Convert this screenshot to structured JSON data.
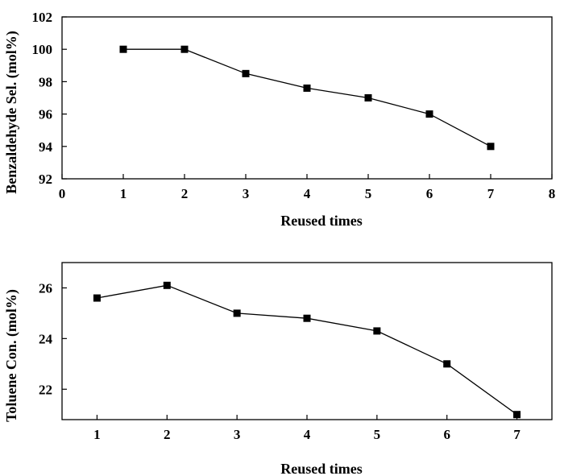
{
  "chart_data": [
    {
      "type": "line",
      "x": [
        1,
        2,
        3,
        4,
        5,
        6,
        7
      ],
      "values": [
        100,
        100,
        98.5,
        97.6,
        97.0,
        96.0,
        94.0
      ],
      "xlabel": "Reused times",
      "ylabel": "Benzaldehyde Sel. (mol%)",
      "xlim": [
        0,
        8
      ],
      "ylim": [
        92,
        102
      ],
      "xticks": [
        "0",
        "1",
        "2",
        "3",
        "4",
        "5",
        "6",
        "7",
        "8"
      ],
      "yticks": [
        "92",
        "94",
        "96",
        "98",
        "100",
        "102"
      ],
      "marker": "square",
      "color": "#000000",
      "grid": false
    },
    {
      "type": "line",
      "x": [
        1,
        2,
        3,
        4,
        5,
        6,
        7
      ],
      "values": [
        25.6,
        26.1,
        25.0,
        24.8,
        24.3,
        23.0,
        21.0
      ],
      "xlabel": "Reused times",
      "ylabel": "Toluene Con. (mol%)",
      "xlim": [
        0.5,
        7.5
      ],
      "ylim": [
        20.8,
        27.0
      ],
      "xticks": [
        "1",
        "2",
        "3",
        "4",
        "5",
        "6",
        "7"
      ],
      "yticks": [
        "22",
        "24",
        "26"
      ],
      "marker": "square",
      "color": "#000000",
      "grid": false
    }
  ]
}
